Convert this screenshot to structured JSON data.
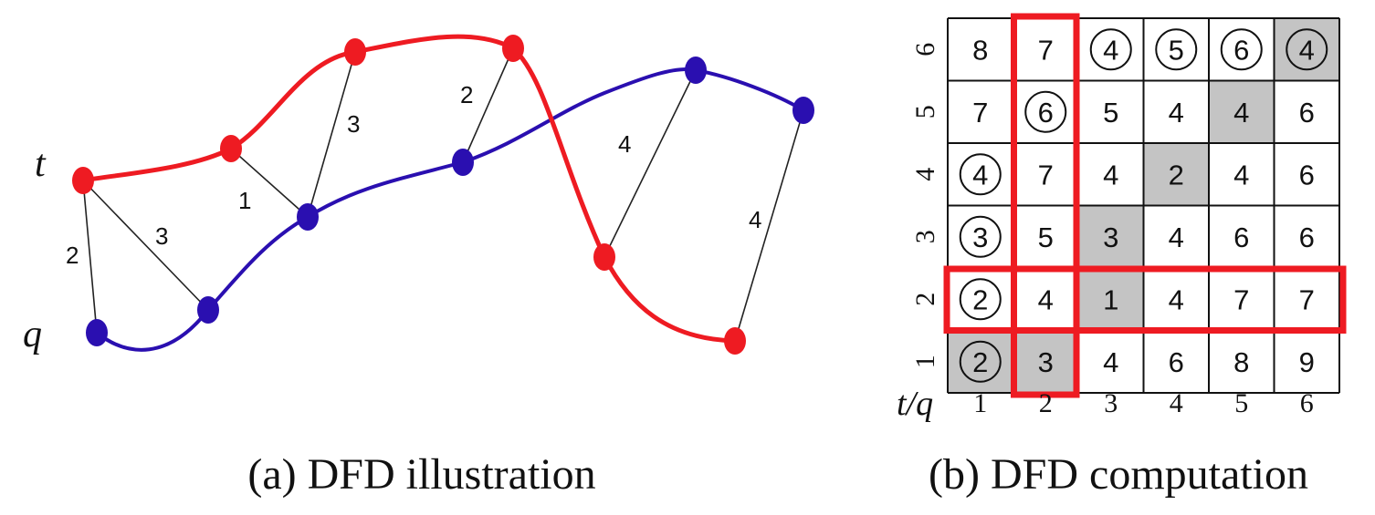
{
  "panel_a": {
    "caption": "(a) DFD illustration",
    "label_t": "t",
    "label_q": "q",
    "colors": {
      "t": "#ee1b22",
      "q": "#2a0fb0",
      "match": "#222222"
    },
    "match_labels": [
      "2",
      "3",
      "1",
      "3",
      "2",
      "4",
      "4"
    ]
  },
  "panel_b": {
    "caption": "(b) DFD computation",
    "corner_label": "t/q",
    "x_ticks": [
      "1",
      "2",
      "3",
      "4",
      "5",
      "6"
    ],
    "y_ticks": [
      "1",
      "2",
      "3",
      "4",
      "5",
      "6"
    ],
    "rows_top_to_bottom": [
      [
        "8",
        "7",
        "4",
        "5",
        "6",
        "4"
      ],
      [
        "7",
        "6",
        "5",
        "4",
        "4",
        "6"
      ],
      [
        "4",
        "7",
        "4",
        "2",
        "4",
        "6"
      ],
      [
        "3",
        "5",
        "3",
        "4",
        "6",
        "6"
      ],
      [
        "2",
        "4",
        "1",
        "4",
        "7",
        "7"
      ],
      [
        "2",
        "3",
        "4",
        "6",
        "8",
        "9"
      ]
    ],
    "circled_cells": [
      [
        0,
        2
      ],
      [
        0,
        3
      ],
      [
        0,
        4
      ],
      [
        0,
        5
      ],
      [
        1,
        1
      ],
      [
        2,
        0
      ],
      [
        3,
        0
      ],
      [
        4,
        0
      ],
      [
        5,
        0
      ]
    ],
    "shaded_cells": [
      [
        0,
        5
      ],
      [
        1,
        4
      ],
      [
        2,
        3
      ],
      [
        3,
        2
      ],
      [
        4,
        2
      ],
      [
        5,
        0
      ],
      [
        5,
        1
      ]
    ],
    "highlight_color": "#ee1b22",
    "shade_color": "#c4c4c4"
  }
}
